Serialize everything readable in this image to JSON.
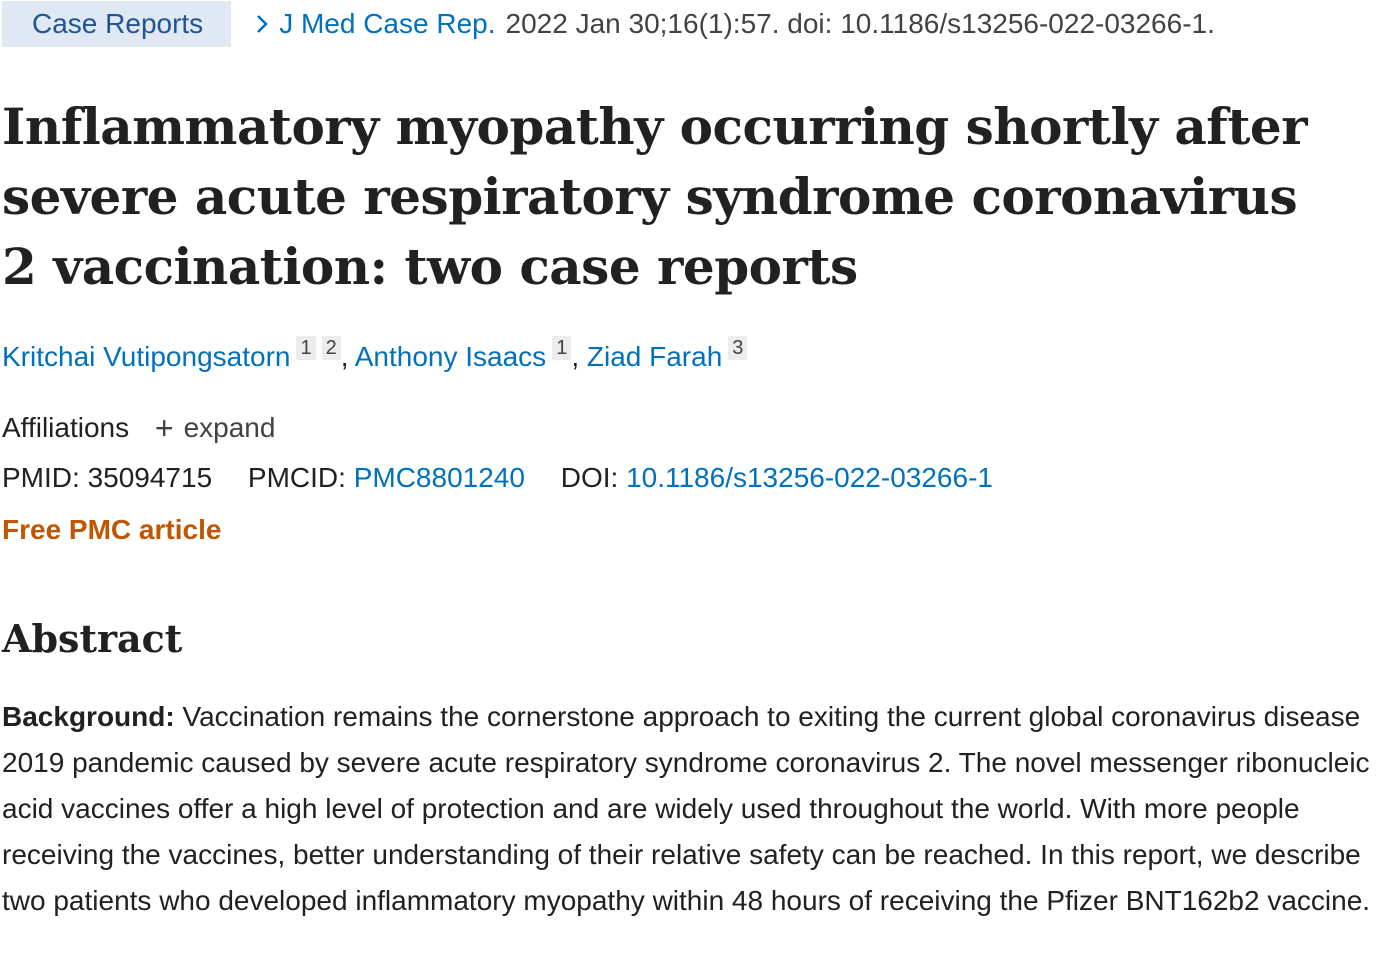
{
  "breadcrumb": {
    "article_type": "Case Reports",
    "journal": "J Med Case Rep.",
    "citation": "2022 Jan 30;16(1):57. doi: 10.1186/s13256-022-03266-1."
  },
  "title": "Inflammatory myopathy occurring shortly after severe acute respiratory syndrome coronavirus 2 vaccination: two case reports",
  "authors": [
    {
      "name": "Kritchai Vutipongsatorn",
      "affiliations": [
        "1",
        "2"
      ],
      "sep": ","
    },
    {
      "name": "Anthony Isaacs",
      "affiliations": [
        "1"
      ],
      "sep": ","
    },
    {
      "name": "Ziad Farah",
      "affiliations": [
        "3"
      ],
      "sep": ""
    }
  ],
  "affiliations": {
    "label": "Affiliations",
    "expand_label": "expand",
    "expand_icon": "plus-icon"
  },
  "identifiers": {
    "pmid_label": "PMID:",
    "pmid": "35094715",
    "pmcid_label": "PMCID:",
    "pmcid": "PMC8801240",
    "doi_label": "DOI:",
    "doi": "10.1186/s13256-022-03266-1"
  },
  "free_pmc": "Free PMC article",
  "abstract": {
    "heading": "Abstract",
    "background_label": "Background:",
    "background_text": "Vaccination remains the cornerstone approach to exiting the current global coronavirus disease 2019 pandemic caused by severe acute respiratory syndrome coronavirus 2. The novel messenger ribonucleic acid vaccines offer a high level of protection and are widely used throughout the world. With more people receiving the vaccines, better understanding of their relative safety can be reached. In this report, we describe two patients who developed inflammatory myopathy within 48 hours of receiving the Pfizer BNT162b2 vaccine."
  },
  "colors": {
    "link": "#0071bc",
    "badge_bg": "#dfe8f3",
    "free_pmc": "#c05600"
  }
}
